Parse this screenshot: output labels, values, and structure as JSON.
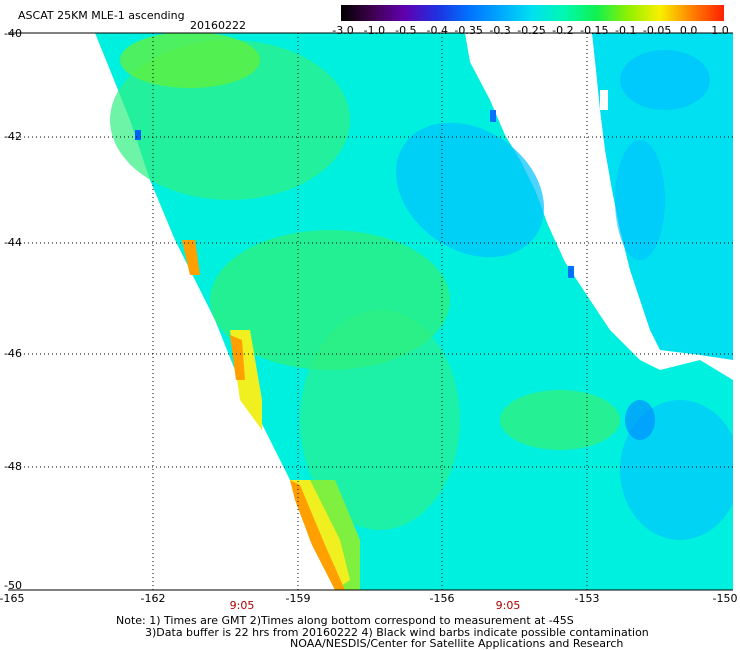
{
  "header": {
    "title": "ASCAT 25KM MLE-1 ascending",
    "date": "20160222"
  },
  "colorbar": {
    "labels": [
      "-3.0",
      "-1.0",
      "-0.5",
      "-0.4",
      "-0.35",
      "-0.3",
      "-0.25",
      "-0.2",
      "-0.15",
      "-0.1",
      "-0.05",
      "0.0",
      "1.0"
    ],
    "colors": [
      "#000000",
      "#400050",
      "#6000b0",
      "#2030e0",
      "#0070ff",
      "#00a8ff",
      "#00e0f0",
      "#00f8b0",
      "#10f050",
      "#90f000",
      "#f8f000",
      "#ff8000",
      "#ff2000"
    ]
  },
  "map": {
    "lat_labels": [
      "-40",
      "-42",
      "-44",
      "-46",
      "-48",
      "-50"
    ],
    "lon_labels": [
      "-165",
      "-162",
      "-159",
      "-156",
      "-153",
      "-150"
    ],
    "times": [
      "9:05",
      "9:05"
    ],
    "grid": true
  },
  "notes": [
    "Note: 1) Times are GMT 2)Times along bottom correspond to measurement at -45S",
    "3)Data buffer is 22 hrs from 20160222 4) Black wind barbs indicate possible contamination",
    "NOAA/NESDIS/Center for Satellite Applications and Research"
  ]
}
